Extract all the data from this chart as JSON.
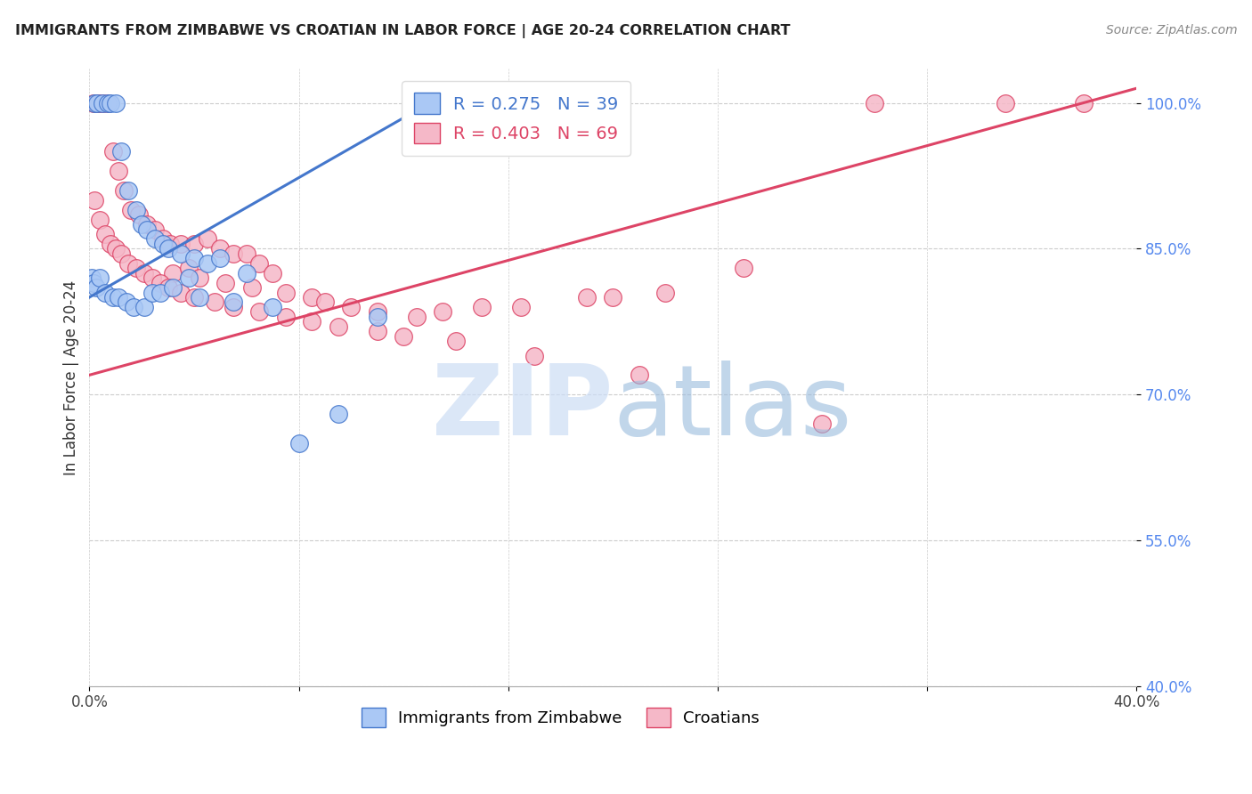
{
  "title": "IMMIGRANTS FROM ZIMBABWE VS CROATIAN IN LABOR FORCE | AGE 20-24 CORRELATION CHART",
  "source": "Source: ZipAtlas.com",
  "ylabel": "In Labor Force | Age 20-24",
  "xlim": [
    0.0,
    40.0
  ],
  "ylim": [
    40.0,
    103.5
  ],
  "yticks": [
    40.0,
    55.0,
    70.0,
    85.0,
    100.0
  ],
  "xticks": [
    0.0,
    8.0,
    16.0,
    24.0,
    32.0,
    40.0
  ],
  "ytick_labels": [
    "40.0%",
    "55.0%",
    "70.0%",
    "85.0%",
    "100.0%"
  ],
  "legend_entries": [
    {
      "label": "R = 0.275   N = 39",
      "color": "#6699ff"
    },
    {
      "label": "R = 0.403   N = 69",
      "color": "#ff6680"
    }
  ],
  "legend_labels": [
    "Immigrants from Zimbabwe",
    "Croatians"
  ],
  "blue_color": "#aac8f5",
  "pink_color": "#f5b8c8",
  "blue_line_color": "#4477cc",
  "pink_line_color": "#dd4466",
  "grid_color": "#cccccc",
  "zimbabwe_x": [
    0.2,
    0.3,
    0.5,
    0.7,
    0.8,
    1.0,
    1.2,
    1.5,
    1.8,
    2.0,
    2.2,
    2.5,
    2.8,
    3.0,
    3.5,
    4.0,
    4.5,
    5.0,
    6.0,
    0.1,
    0.15,
    0.25,
    0.4,
    0.6,
    0.9,
    1.1,
    1.4,
    1.7,
    2.1,
    2.4,
    2.7,
    3.2,
    3.8,
    4.2,
    5.5,
    7.0,
    8.0,
    9.5,
    11.0
  ],
  "zimbabwe_y": [
    100.0,
    100.0,
    100.0,
    100.0,
    100.0,
    100.0,
    95.0,
    91.0,
    89.0,
    87.5,
    87.0,
    86.0,
    85.5,
    85.0,
    84.5,
    84.0,
    83.5,
    84.0,
    82.5,
    82.0,
    81.5,
    81.0,
    82.0,
    80.5,
    80.0,
    80.0,
    79.5,
    79.0,
    79.0,
    80.5,
    80.5,
    81.0,
    82.0,
    80.0,
    79.5,
    79.0,
    65.0,
    68.0,
    78.0
  ],
  "croatian_x": [
    0.15,
    0.25,
    0.35,
    0.5,
    0.7,
    0.9,
    1.1,
    1.3,
    1.6,
    1.9,
    2.2,
    2.5,
    2.8,
    3.1,
    3.5,
    4.0,
    4.5,
    5.0,
    5.5,
    6.0,
    6.5,
    7.0,
    3.2,
    3.8,
    4.2,
    5.2,
    6.2,
    7.5,
    8.5,
    9.0,
    10.0,
    11.0,
    12.5,
    13.5,
    15.0,
    16.5,
    19.0,
    20.0,
    22.0,
    25.0,
    30.0,
    35.0,
    38.0,
    0.2,
    0.4,
    0.6,
    0.8,
    1.0,
    1.2,
    1.5,
    1.8,
    2.1,
    2.4,
    2.7,
    3.0,
    3.5,
    4.0,
    4.8,
    5.5,
    6.5,
    7.5,
    8.5,
    9.5,
    11.0,
    12.0,
    14.0,
    17.0,
    21.0,
    28.0
  ],
  "croatian_y": [
    100.0,
    100.0,
    100.0,
    100.0,
    100.0,
    95.0,
    93.0,
    91.0,
    89.0,
    88.5,
    87.5,
    87.0,
    86.0,
    85.5,
    85.5,
    85.5,
    86.0,
    85.0,
    84.5,
    84.5,
    83.5,
    82.5,
    82.5,
    83.0,
    82.0,
    81.5,
    81.0,
    80.5,
    80.0,
    79.5,
    79.0,
    78.5,
    78.0,
    78.5,
    79.0,
    79.0,
    80.0,
    80.0,
    80.5,
    83.0,
    100.0,
    100.0,
    100.0,
    90.0,
    88.0,
    86.5,
    85.5,
    85.0,
    84.5,
    83.5,
    83.0,
    82.5,
    82.0,
    81.5,
    81.0,
    80.5,
    80.0,
    79.5,
    79.0,
    78.5,
    78.0,
    77.5,
    77.0,
    76.5,
    76.0,
    75.5,
    74.0,
    72.0,
    67.0
  ],
  "zim_trend": [
    79.5,
    1.5
  ],
  "cro_trend": [
    72.0,
    0.7
  ]
}
